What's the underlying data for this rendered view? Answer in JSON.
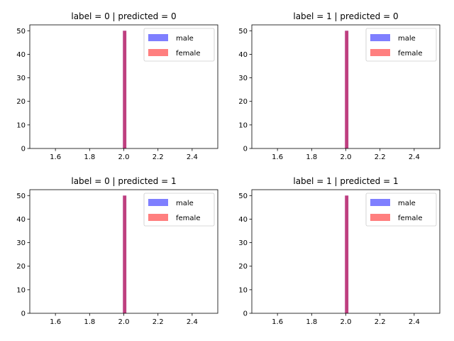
{
  "figure": {
    "colors": {
      "male": "#0000ff",
      "female": "#ff0000",
      "alpha": 0.5,
      "legend_edge": "#cccccc"
    }
  },
  "chart_data": [
    {
      "type": "bar",
      "title": "label = 0 | predicted = 0",
      "xlim": [
        1.45,
        2.55
      ],
      "ylim": [
        0,
        52.5
      ],
      "xticks": [
        1.6,
        1.8,
        2.0,
        2.2,
        2.4
      ],
      "xtick_labels": [
        "1.6",
        "1.8",
        "2.0",
        "2.2",
        "2.4"
      ],
      "yticks": [
        0,
        10,
        20,
        30,
        40,
        50
      ],
      "ytick_labels": [
        "0",
        "10",
        "20",
        "30",
        "40",
        "50"
      ],
      "legend": {
        "placement": "upper right",
        "entries": [
          "male",
          "female"
        ]
      },
      "series": [
        {
          "name": "male",
          "bins": [
            {
              "x0": 1.995,
              "x1": 2.015,
              "count": 50
            }
          ]
        },
        {
          "name": "female",
          "bins": [
            {
              "x0": 1.995,
              "x1": 2.015,
              "count": 50
            }
          ]
        }
      ]
    },
    {
      "type": "bar",
      "title": "label = 1 | predicted = 0",
      "xlim": [
        1.45,
        2.55
      ],
      "ylim": [
        0,
        52.5
      ],
      "xticks": [
        1.6,
        1.8,
        2.0,
        2.2,
        2.4
      ],
      "xtick_labels": [
        "1.6",
        "1.8",
        "2.0",
        "2.2",
        "2.4"
      ],
      "yticks": [
        0,
        10,
        20,
        30,
        40,
        50
      ],
      "ytick_labels": [
        "0",
        "10",
        "20",
        "30",
        "40",
        "50"
      ],
      "legend": {
        "placement": "upper right",
        "entries": [
          "male",
          "female"
        ]
      },
      "series": [
        {
          "name": "male",
          "bins": [
            {
              "x0": 1.995,
              "x1": 2.015,
              "count": 50
            }
          ]
        },
        {
          "name": "female",
          "bins": [
            {
              "x0": 1.995,
              "x1": 2.015,
              "count": 50
            }
          ]
        }
      ]
    },
    {
      "type": "bar",
      "title": "label = 0 | predicted = 1",
      "xlim": [
        1.45,
        2.55
      ],
      "ylim": [
        0,
        52.5
      ],
      "xticks": [
        1.6,
        1.8,
        2.0,
        2.2,
        2.4
      ],
      "xtick_labels": [
        "1.6",
        "1.8",
        "2.0",
        "2.2",
        "2.4"
      ],
      "yticks": [
        0,
        10,
        20,
        30,
        40,
        50
      ],
      "ytick_labels": [
        "0",
        "10",
        "20",
        "30",
        "40",
        "50"
      ],
      "legend": {
        "placement": "upper right",
        "entries": [
          "male",
          "female"
        ]
      },
      "series": [
        {
          "name": "male",
          "bins": [
            {
              "x0": 1.995,
              "x1": 2.015,
              "count": 50
            }
          ]
        },
        {
          "name": "female",
          "bins": [
            {
              "x0": 1.995,
              "x1": 2.015,
              "count": 50
            }
          ]
        }
      ]
    },
    {
      "type": "bar",
      "title": "label = 1 | predicted = 1",
      "xlim": [
        1.45,
        2.55
      ],
      "ylim": [
        0,
        52.5
      ],
      "xticks": [
        1.6,
        1.8,
        2.0,
        2.2,
        2.4
      ],
      "xtick_labels": [
        "1.6",
        "1.8",
        "2.0",
        "2.2",
        "2.4"
      ],
      "yticks": [
        0,
        10,
        20,
        30,
        40,
        50
      ],
      "ytick_labels": [
        "0",
        "10",
        "20",
        "30",
        "40",
        "50"
      ],
      "legend": {
        "placement": "upper right",
        "entries": [
          "male",
          "female"
        ]
      },
      "series": [
        {
          "name": "male",
          "bins": [
            {
              "x0": 1.995,
              "x1": 2.015,
              "count": 50
            }
          ]
        },
        {
          "name": "female",
          "bins": [
            {
              "x0": 1.995,
              "x1": 2.015,
              "count": 50
            }
          ]
        }
      ]
    }
  ]
}
